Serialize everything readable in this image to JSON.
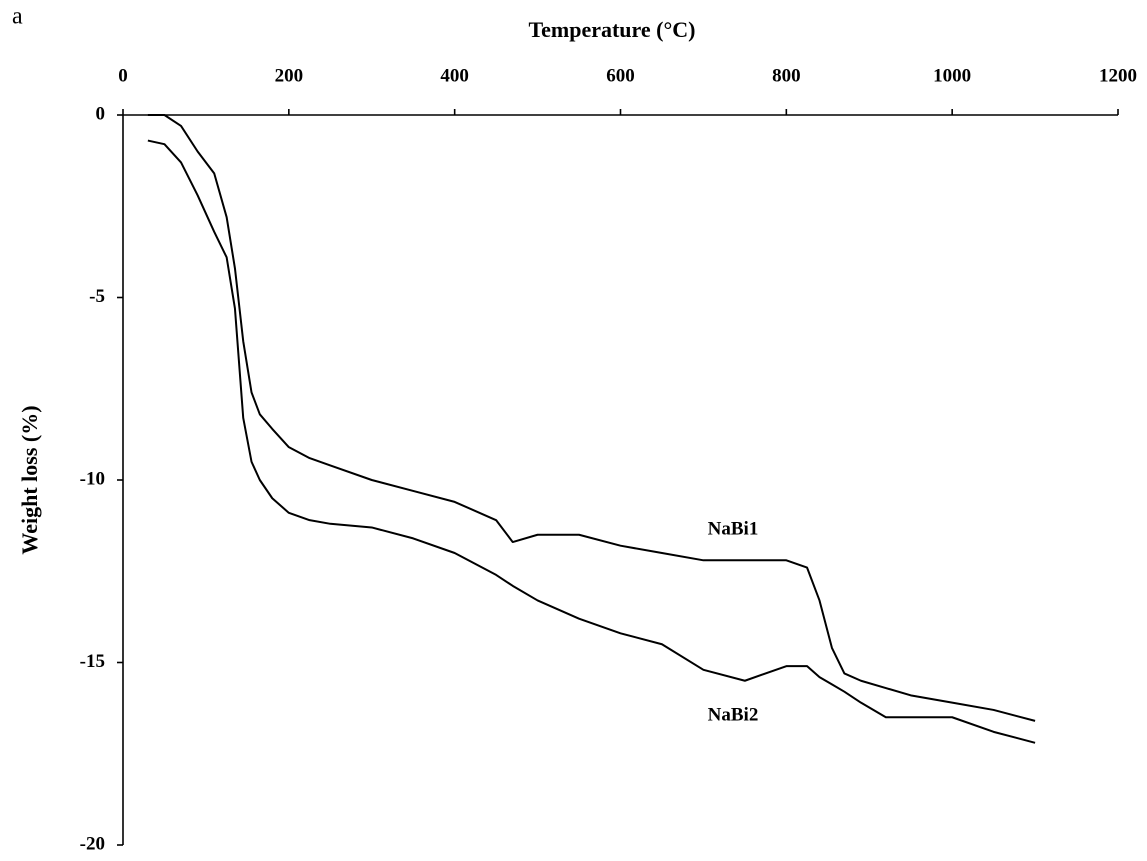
{
  "panel_label": "a",
  "chart_data": {
    "type": "line",
    "x_label": "Temperature (°C)",
    "y_label": "Weight loss (%)",
    "x": [
      30,
      50,
      70,
      90,
      110,
      125,
      135,
      145,
      155,
      165,
      180,
      200,
      225,
      250,
      300,
      350,
      400,
      450,
      470,
      500,
      550,
      600,
      650,
      700,
      750,
      800,
      825,
      840,
      855,
      870,
      890,
      920,
      950,
      1000,
      1050,
      1100
    ],
    "series": [
      {
        "name": "NaBi1",
        "color": "#000000",
        "values": [
          0,
          0,
          -0.3,
          -1.0,
          -1.6,
          -2.8,
          -4.2,
          -6.2,
          -7.6,
          -8.2,
          -8.6,
          -9.1,
          -9.4,
          -9.6,
          -10.0,
          -10.3,
          -10.6,
          -11.1,
          -11.7,
          -11.5,
          -11.5,
          -11.8,
          -12.0,
          -12.2,
          -12.2,
          -12.2,
          -12.4,
          -13.3,
          -14.6,
          -15.3,
          -15.5,
          -15.7,
          -15.9,
          -16.1,
          -16.3,
          -16.6
        ]
      },
      {
        "name": "NaBi2",
        "color": "#000000",
        "values": [
          -0.7,
          -0.8,
          -1.3,
          -2.2,
          -3.2,
          -3.9,
          -5.3,
          -8.3,
          -9.5,
          -10.0,
          -10.5,
          -10.9,
          -11.1,
          -11.2,
          -11.3,
          -11.6,
          -12.0,
          -12.6,
          -12.9,
          -13.3,
          -13.8,
          -14.2,
          -14.5,
          -15.2,
          -15.5,
          -15.1,
          -15.1,
          -15.4,
          -15.6,
          -15.8,
          -16.1,
          -16.5,
          -16.5,
          -16.5,
          -16.9,
          -17.2
        ]
      }
    ],
    "xlim": [
      0,
      1200
    ],
    "xticks": [
      0,
      200,
      400,
      600,
      800,
      1000,
      1200
    ],
    "ylim": [
      -20,
      0
    ],
    "yticks": [
      -20,
      -15,
      -10,
      -5,
      0
    ]
  }
}
